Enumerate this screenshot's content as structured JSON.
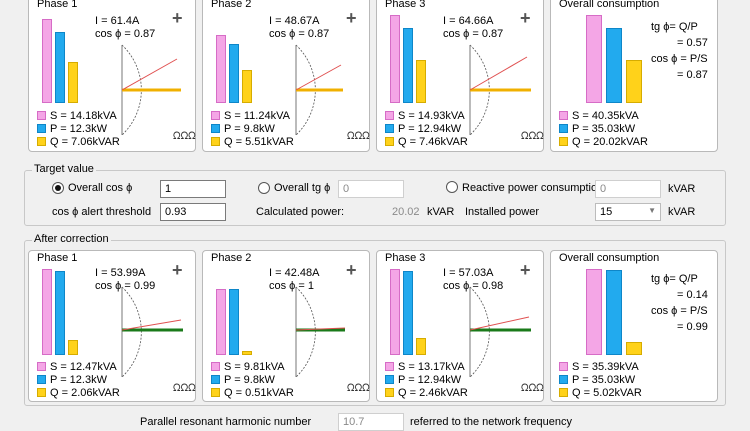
{
  "phases_top": [
    {
      "title": "Phase 1",
      "current": "I = 61.4A",
      "cosphi": "cos ϕ = 0.87",
      "s": "S = 14.18kVA",
      "p": "P = 12.3kW",
      "q": "Q = 7.06kVAR",
      "s_level": 1.0,
      "p_level": 0.87,
      "q_level": 0.5
    },
    {
      "title": "Phase 2",
      "current": "I = 48.67A",
      "cosphi": "cos ϕ = 0.87",
      "s": "S = 11.24kVA",
      "p": "P = 9.8kW",
      "q": "Q = 5.51kVAR",
      "s_level": 0.79,
      "p_level": 0.69,
      "q_level": 0.39
    },
    {
      "title": "Phase 3",
      "current": "I = 64.66A",
      "cosphi": "cos ϕ = 0.87",
      "s": "S = 14.93kVA",
      "p": "P = 12.94kW",
      "q": "Q = 7.46kVAR",
      "s_level": 1.0,
      "p_level": 0.87,
      "q_level": 0.5
    }
  ],
  "overall_top": {
    "title": "Overall consumption",
    "tg_label": "tg ϕ= Q/P",
    "tg_value": "= 0.57",
    "cos_label": "cos ϕ = P/S",
    "cos_value": "= 0.87",
    "s": "S = 40.35kVA",
    "p": "P = 35.03kW",
    "q": "Q = 20.02kVAR",
    "s_level": 1.0,
    "p_level": 0.87,
    "q_level": 0.5
  },
  "target": {
    "group_label": "Target value",
    "overall_cos_label": "Overall cos ϕ",
    "overall_cos_value": "1",
    "overall_tg_label": "Overall tg ϕ",
    "overall_tg_value": "0",
    "reactive_label": "Reactive power consumption",
    "reactive_value": "0",
    "reactive_unit": "kVAR",
    "alert_label": "cos ϕ alert threshold",
    "alert_value": "0.93",
    "calc_label": "Calculated power:",
    "calc_value": "20.02",
    "calc_unit": "kVAR",
    "installed_label": "Installed power",
    "installed_value": "15",
    "installed_unit": "kVAR"
  },
  "after": {
    "group_label": "After correction",
    "phases": [
      {
        "title": "Phase 1",
        "current": "I = 53.99A",
        "cosphi": "cos ϕ = 0.99",
        "s": "S = 12.47kVA",
        "p": "P = 12.3kW",
        "q": "Q = 2.06kVAR",
        "s_level": 1.0,
        "p_level": 0.99,
        "q_level": 0.17
      },
      {
        "title": "Phase 2",
        "current": "I = 42.48A",
        "cosphi": "cos ϕ = 1",
        "s": "S = 9.81kVA",
        "p": "P = 9.8kW",
        "q": "Q = 0.51kVAR",
        "s_level": 0.79,
        "p_level": 0.79,
        "q_level": 0.04
      },
      {
        "title": "Phase 3",
        "current": "I = 57.03A",
        "cosphi": "cos ϕ = 0.98",
        "s": "S = 13.17kVA",
        "p": "P = 12.94kW",
        "q": "Q = 2.46kVAR",
        "s_level": 1.0,
        "p_level": 0.98,
        "q_level": 0.19
      }
    ],
    "overall": {
      "title": "Overall consumption",
      "tg_label": "tg ϕ= Q/P",
      "tg_value": "= 0.14",
      "cos_label": "cos ϕ = P/S",
      "cos_value": "= 0.99",
      "s": "S = 35.39kVA",
      "p": "P = 35.03kW",
      "q": "Q = 5.02kVAR",
      "s_level": 1.0,
      "p_level": 0.99,
      "q_level": 0.14
    }
  },
  "bottom": {
    "harmonic_label": "Parallel resonant harmonic number",
    "harmonic_value": "10.7",
    "harmonic_suffix": "referred to the network frequency"
  },
  "icons": {
    "plus": "plus-icon",
    "inductor": "inductor-icon"
  },
  "colors": {
    "s": "#f4a6e6",
    "p": "#22aaee",
    "q": "#ffd21a",
    "phasor_before": "#f0b000",
    "phasor_after": "#1a7a1a",
    "phasor_s": "#e05050"
  }
}
